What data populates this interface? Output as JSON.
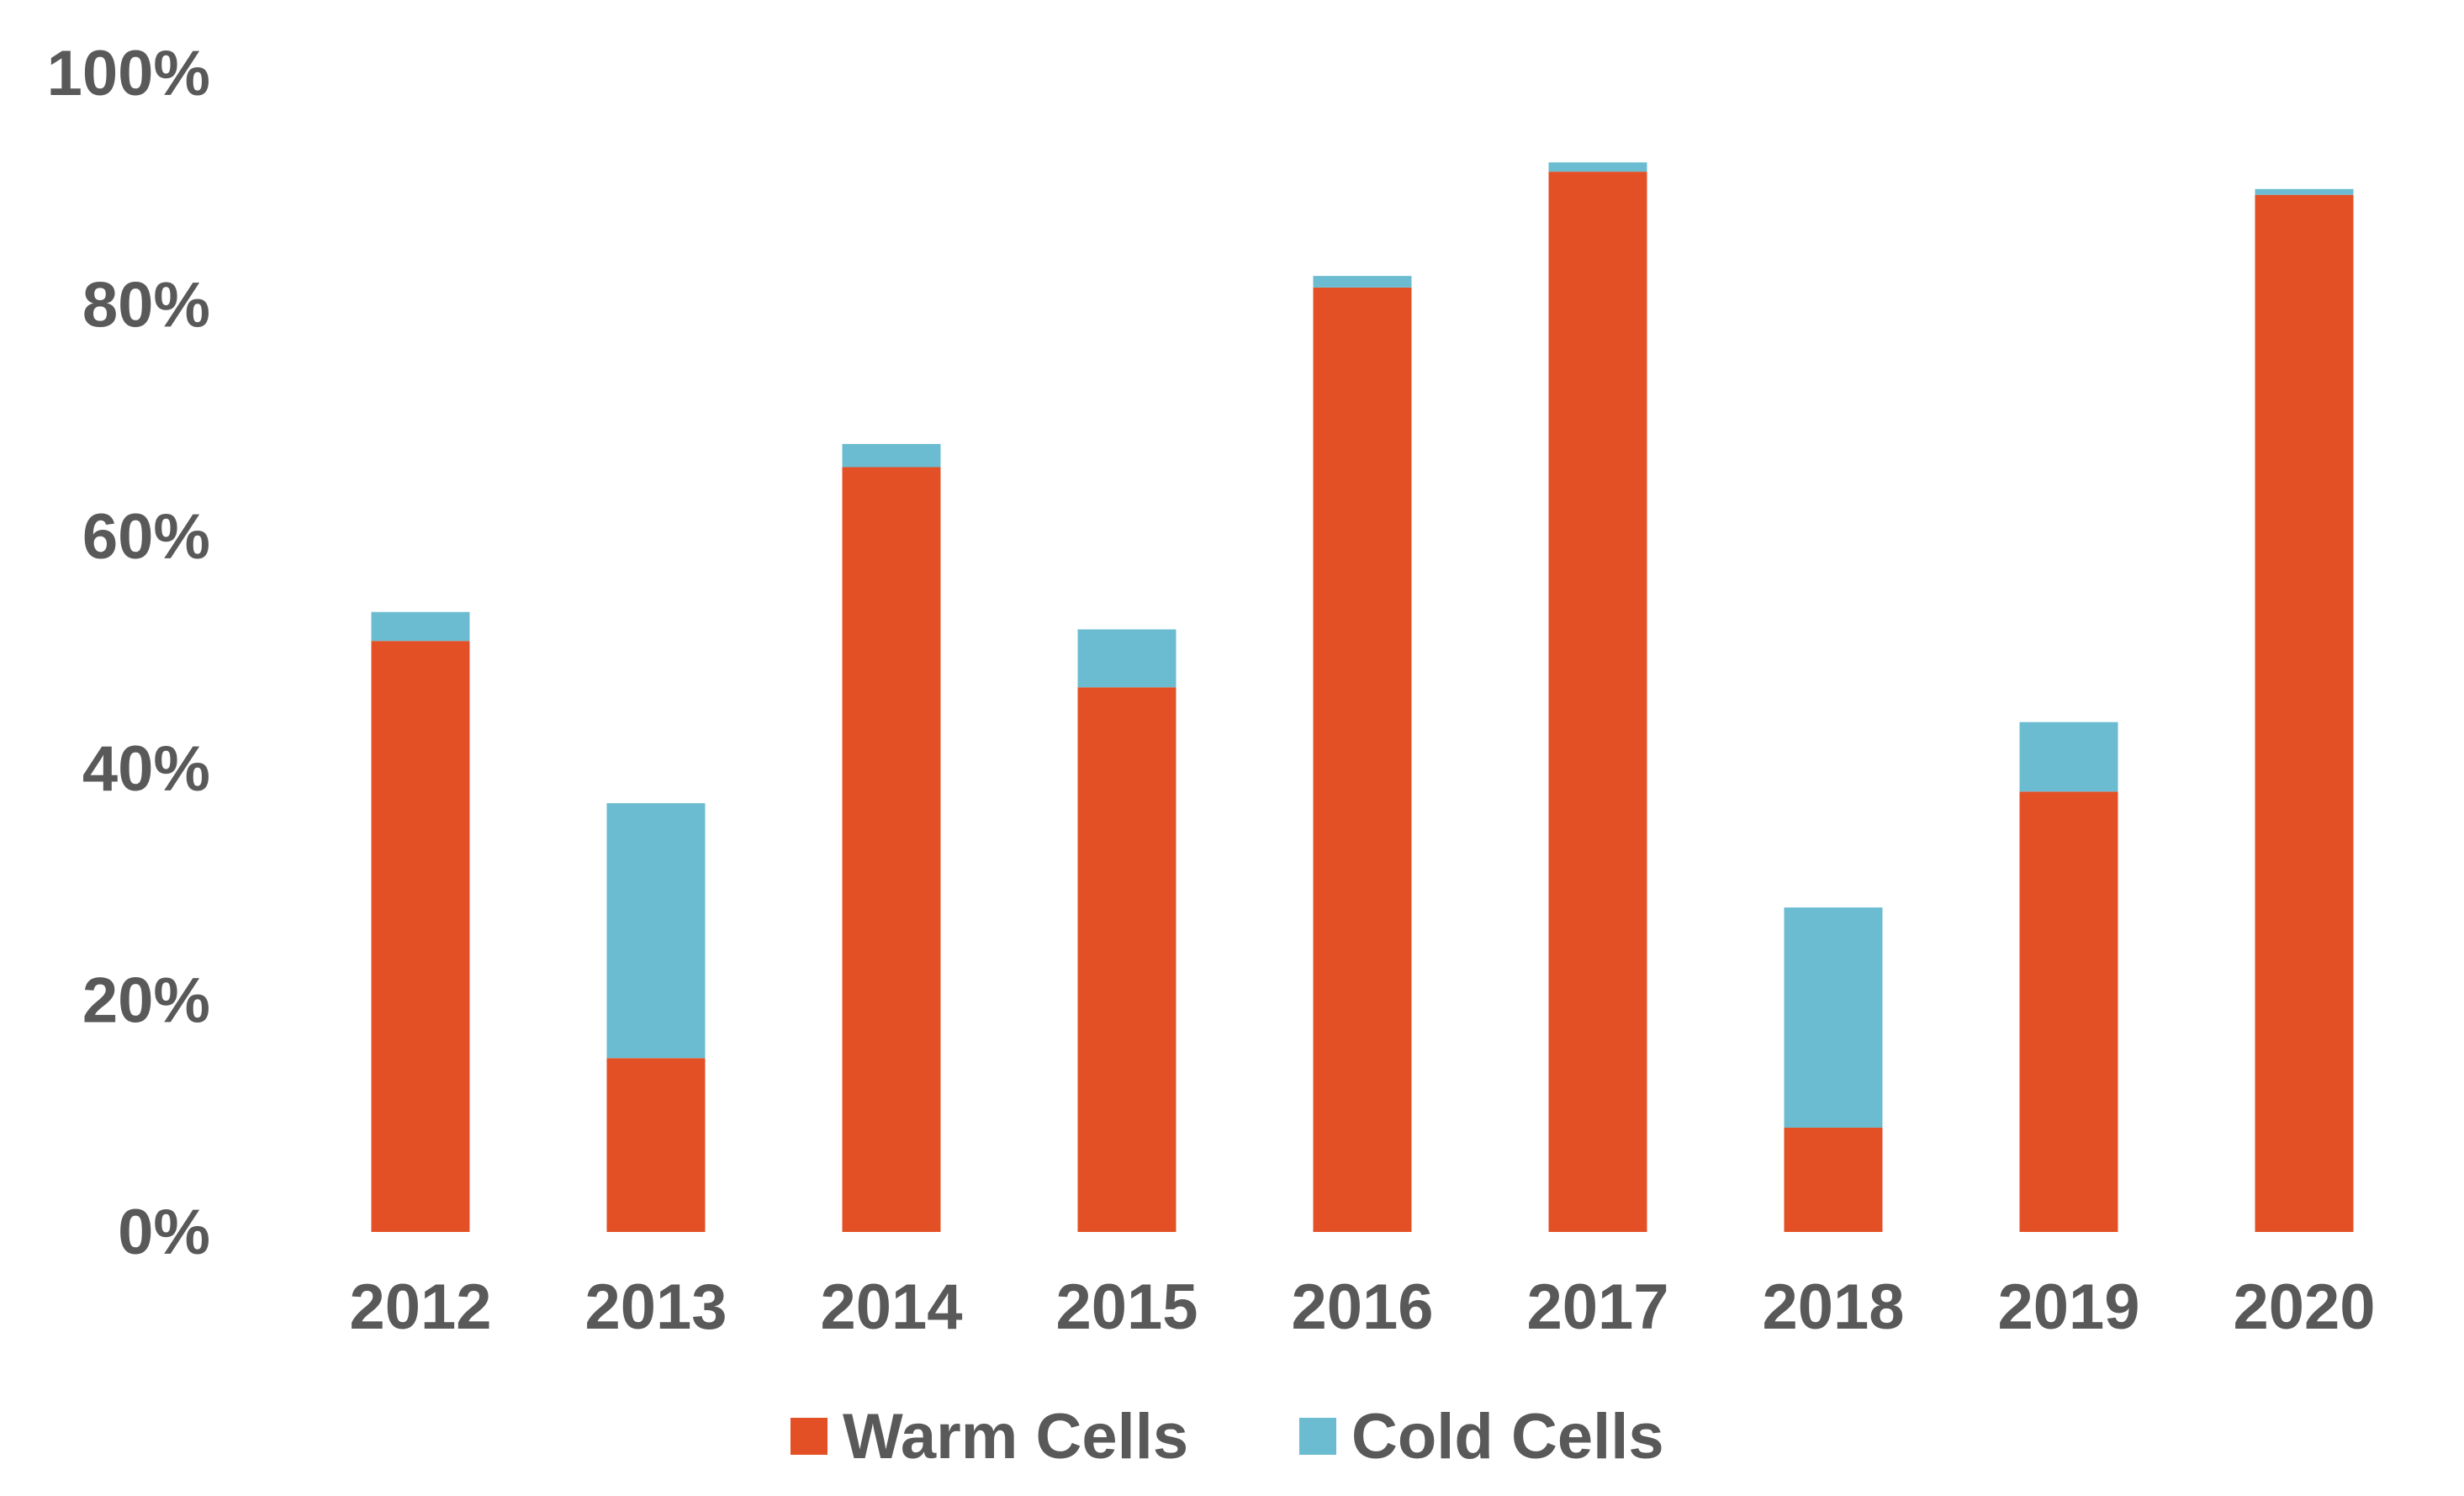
{
  "chart_data": {
    "type": "bar",
    "stacked": true,
    "categories": [
      "2012",
      "2013",
      "2014",
      "2015",
      "2016",
      "2017",
      "2018",
      "2019",
      "2020"
    ],
    "series": [
      {
        "name": "Warm Cells",
        "color": "#E35026",
        "values": [
          51,
          15,
          66,
          47,
          81.5,
          91.5,
          9,
          38,
          89.5
        ]
      },
      {
        "name": "Cold Cells",
        "color": "#6BBCD1",
        "values": [
          2.5,
          22,
          2,
          5,
          1,
          0.8,
          19,
          6,
          0.5
        ]
      }
    ],
    "y_ticks": [
      "0%",
      "20%",
      "40%",
      "60%",
      "80%",
      "100%"
    ],
    "ylim": [
      0,
      100
    ],
    "y_unit": "%",
    "grid": false,
    "legend_position": "bottom"
  }
}
